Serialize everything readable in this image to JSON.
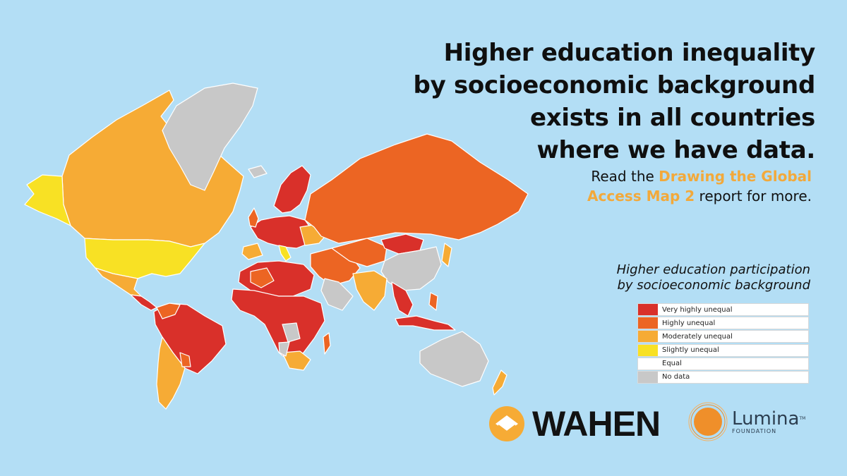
{
  "headline": {
    "line1": "Higher education inequality",
    "line2": "by socioeconomic background",
    "line3": "exists in all countries",
    "line4": "where we have data."
  },
  "subline": {
    "prefix": "Read the ",
    "highlight_line1": "Drawing the Global",
    "highlight_line2": "Access Map 2",
    "suffix": " report for more."
  },
  "legend": {
    "title_line1": "Higher education participation",
    "title_line2": "by socioeconomic background",
    "items": [
      {
        "label": "Very highly unequal",
        "color": "#d9302a"
      },
      {
        "label": "Highly unequal",
        "color": "#ec6523"
      },
      {
        "label": "Moderately unequal",
        "color": "#f6ab35"
      },
      {
        "label": "Slightly unequal",
        "color": "#f8e124"
      },
      {
        "label": "Equal",
        "color": "#ffffff"
      },
      {
        "label": "No data",
        "color": "#c8c8c8"
      }
    ]
  },
  "logos": {
    "wahen": "WAHEN",
    "lumina": "Lumina",
    "lumina_sub": "FOUNDATION",
    "lumina_tm": "TM"
  },
  "colors": {
    "background": "#b3def5",
    "very_high": "#d9302a",
    "high": "#ec6523",
    "moderate": "#f6ab35",
    "slight": "#f8e124",
    "no_data": "#c8c8c8",
    "highlight_text": "#f2a93b"
  }
}
